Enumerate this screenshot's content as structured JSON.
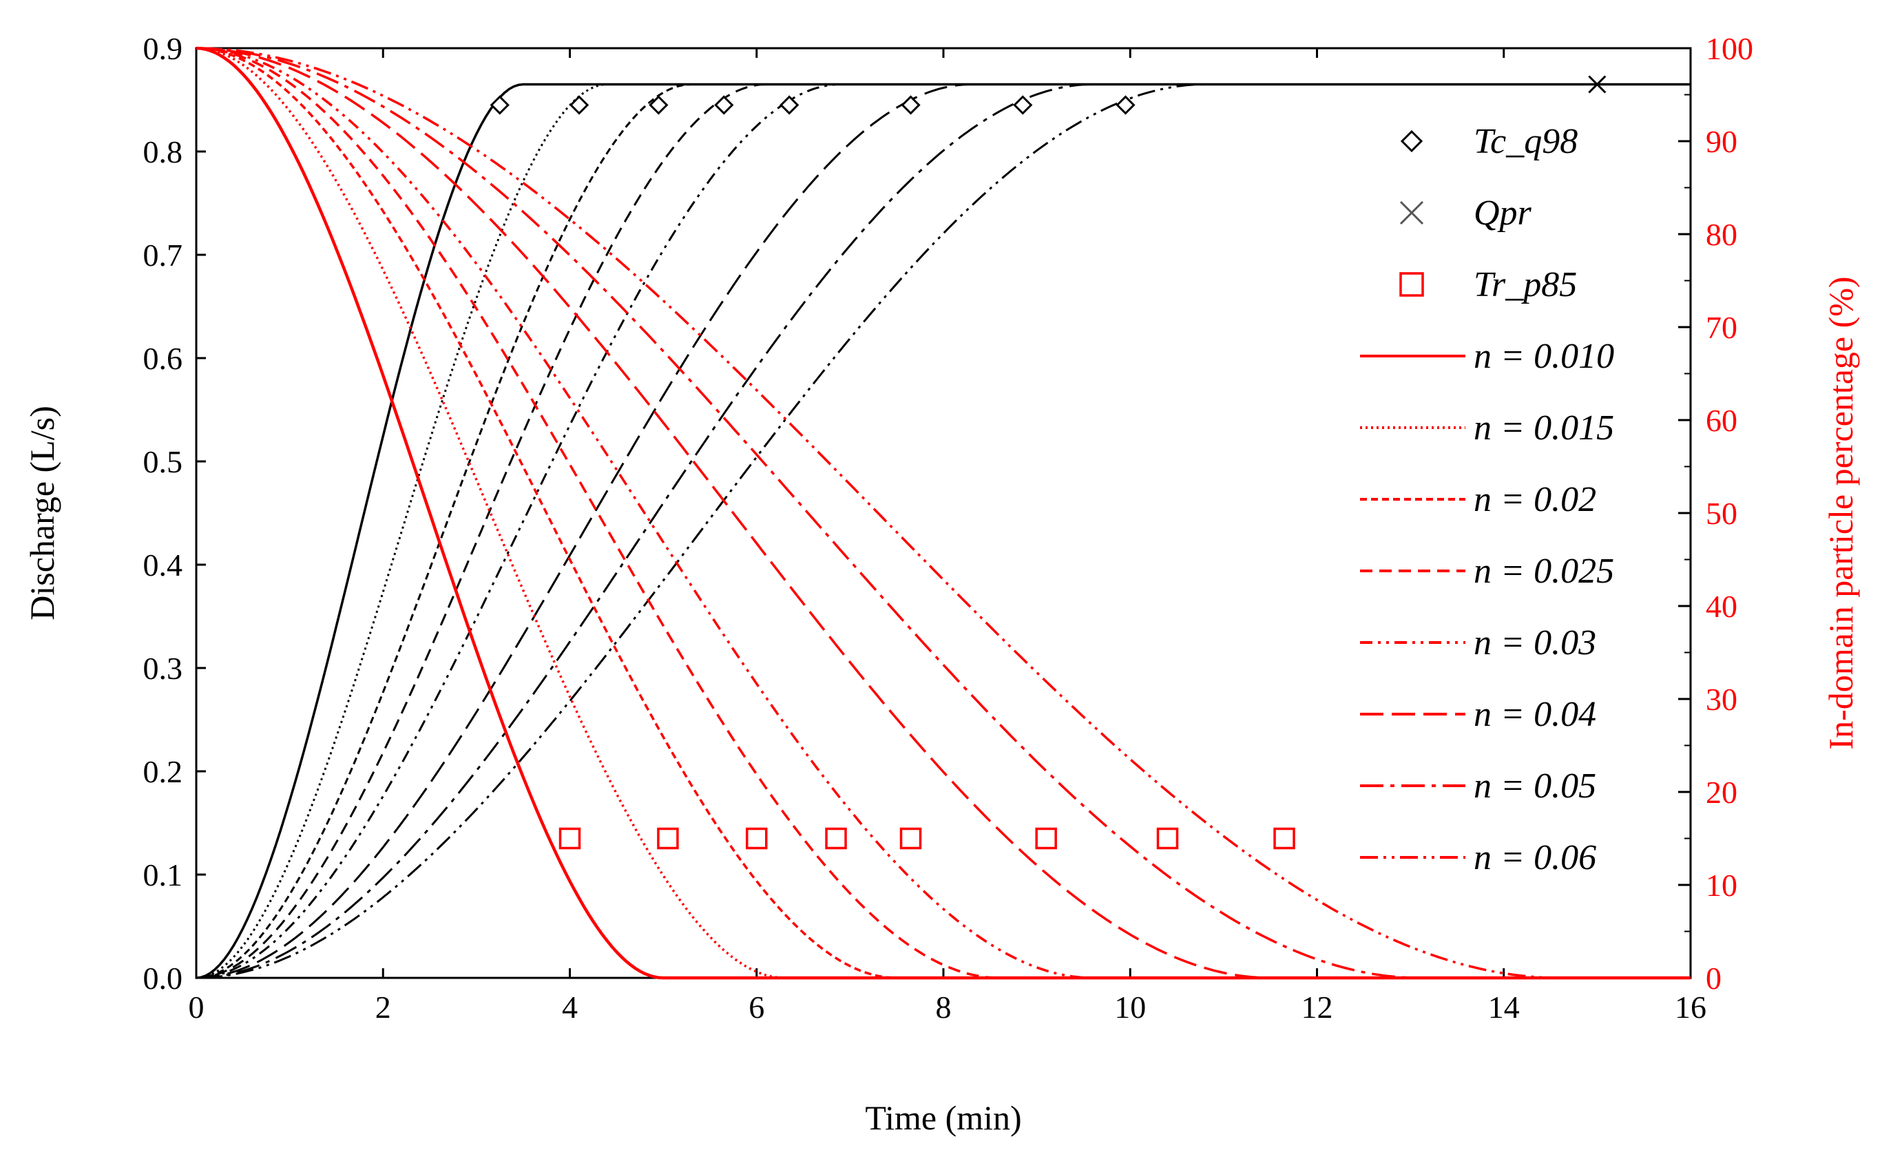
{
  "chart_data": {
    "type": "line",
    "xlabel": "Time (min)",
    "ylabel_left": "Discharge (L/s)",
    "ylabel_right": "In-domain particle percentage (%)",
    "xlim": [
      0,
      16
    ],
    "ylim_left": [
      0,
      0.9
    ],
    "ylim_right": [
      0,
      100
    ],
    "x_ticks": [
      "0",
      "2",
      "4",
      "6",
      "8",
      "10",
      "12",
      "14",
      "16"
    ],
    "y_left_ticks": [
      "0.0",
      "0.1",
      "0.2",
      "0.3",
      "0.4",
      "0.5",
      "0.6",
      "0.7",
      "0.8",
      "0.9"
    ],
    "y_right_ticks": [
      "0",
      "10",
      "20",
      "30",
      "40",
      "50",
      "60",
      "70",
      "80",
      "90",
      "100"
    ],
    "grid": false,
    "legend_position": "right",
    "colors": {
      "discharge": "#000000",
      "particle": "#ff0000",
      "right_axis": "#ff0000"
    },
    "q_peak": 0.865,
    "markers": {
      "Tc_q98": {
        "label": "Tc_q98",
        "symbol": "diamond",
        "points": [
          [
            3.25,
            0.845
          ],
          [
            4.1,
            0.845
          ],
          [
            4.95,
            0.845
          ],
          [
            5.65,
            0.845
          ],
          [
            6.35,
            0.845
          ],
          [
            7.65,
            0.845
          ],
          [
            8.85,
            0.845
          ],
          [
            9.95,
            0.845
          ]
        ]
      },
      "Qpr": {
        "label": "Qpr",
        "symbol": "cross",
        "points": [
          [
            15.0,
            0.865
          ]
        ]
      },
      "Tr_p85": {
        "label": "Tr_p85",
        "symbol": "square",
        "points": [
          [
            4.0,
            15
          ],
          [
            5.05,
            15
          ],
          [
            6.0,
            15
          ],
          [
            6.85,
            15
          ],
          [
            7.65,
            15
          ],
          [
            9.1,
            15
          ],
          [
            10.4,
            15
          ],
          [
            11.65,
            15
          ]
        ]
      }
    },
    "series": [
      {
        "name": "n = 0.010",
        "dash": "solid",
        "tc": 3.5,
        "tr_end": 5.0
      },
      {
        "name": "n = 0.015",
        "dash": "dotted",
        "tc": 4.4,
        "tr_end": 6.3
      },
      {
        "name": "n = 0.02",
        "dash": "shortdash",
        "tc": 5.3,
        "tr_end": 7.5
      },
      {
        "name": "n = 0.025",
        "dash": "dash",
        "tc": 6.1,
        "tr_end": 8.6
      },
      {
        "name": "n = 0.03",
        "dash": "dashdotdot",
        "tc": 6.9,
        "tr_end": 9.6
      },
      {
        "name": "n = 0.04",
        "dash": "longdash",
        "tc": 8.3,
        "tr_end": 11.5
      },
      {
        "name": "n = 0.05",
        "dash": "longdashdot",
        "tc": 9.6,
        "tr_end": 13.1
      },
      {
        "name": "n = 0.06",
        "dash": "dashdotdot2",
        "tc": 10.8,
        "tr_end": 14.6
      }
    ]
  }
}
